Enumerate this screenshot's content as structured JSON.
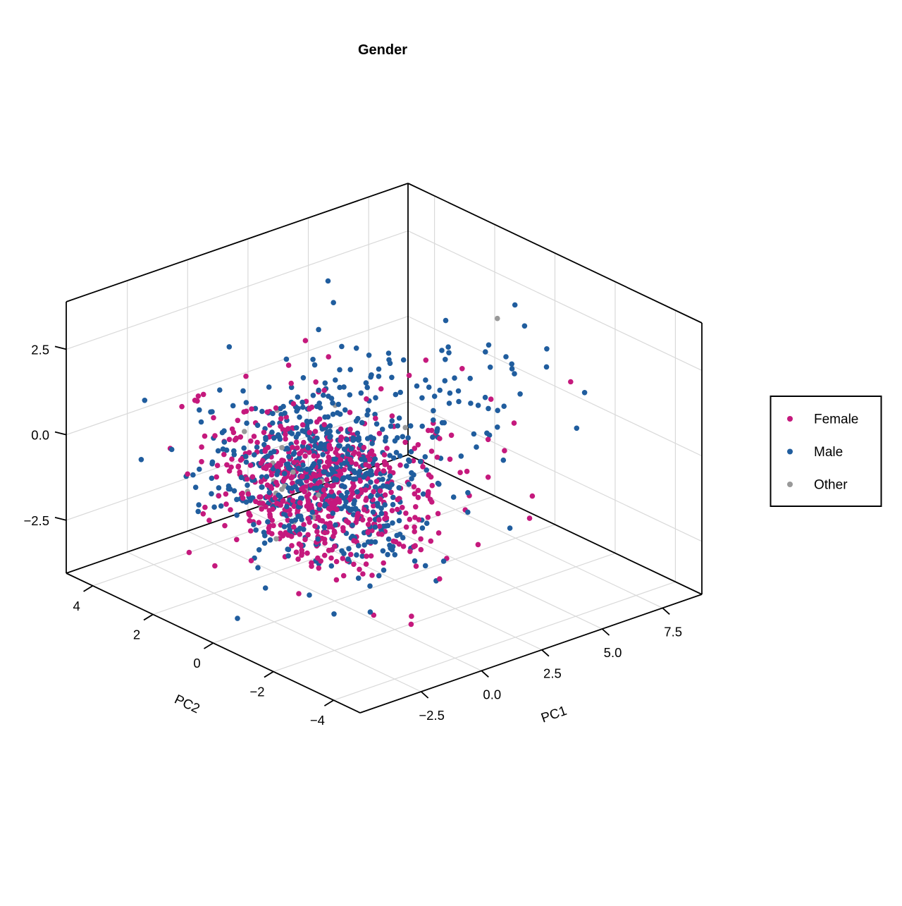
{
  "title": "Gender",
  "chart_data": {
    "type": "scatter",
    "projection": "3d",
    "title": "Gender",
    "grid": true,
    "axes": {
      "x": {
        "label": "PC1",
        "range": [
          -5.03,
          9.13
        ],
        "ticks": [
          {
            "v": -2.5,
            "label": "−2.5"
          },
          {
            "v": 0.0,
            "label": "0.0"
          },
          {
            "v": 2.5,
            "label": "2.5"
          },
          {
            "v": 5.0,
            "label": "5.0"
          },
          {
            "v": 7.5,
            "label": "7.5"
          }
        ]
      },
      "y": {
        "label": "PC2",
        "range": [
          -4.88,
          4.88
        ],
        "ticks": [
          {
            "v": 4,
            "label": "4"
          },
          {
            "v": 2,
            "label": "2"
          },
          {
            "v": 0,
            "label": "0"
          },
          {
            "v": -2,
            "label": "−2"
          },
          {
            "v": -4,
            "label": "−4"
          }
        ]
      },
      "z": {
        "label": "",
        "range": [
          -4.05,
          3.89
        ],
        "ticks": [
          {
            "v": 2.5,
            "label": "2.5"
          },
          {
            "v": 0.0,
            "label": "0.0"
          },
          {
            "v": -2.5,
            "label": "−2.5"
          }
        ]
      }
    },
    "legend": {
      "position": "right",
      "entries": [
        {
          "label": "Female",
          "color": "#C5197D"
        },
        {
          "label": "Male",
          "color": "#205D9E"
        },
        {
          "label": "Other",
          "color": "#999999"
        }
      ]
    },
    "series": [
      {
        "name": "Female",
        "color": "#C5197D",
        "clusters": [
          {
            "n": 600,
            "mean": [
              -0.7,
              0.0,
              -0.55
            ],
            "sd": [
              1.25,
              1.4,
              1.0
            ]
          },
          {
            "n": 45,
            "mean": [
              2.6,
              -0.4,
              -0.1
            ],
            "sd": [
              1.8,
              1.3,
              1.0
            ]
          }
        ]
      },
      {
        "name": "Male",
        "color": "#205D9E",
        "clusters": [
          {
            "n": 560,
            "mean": [
              -0.4,
              0.15,
              -0.4
            ],
            "sd": [
              1.35,
              1.35,
              1.1
            ]
          },
          {
            "n": 120,
            "mean": [
              3.8,
              0.3,
              0.6
            ],
            "sd": [
              2.0,
              1.3,
              1.15
            ]
          }
        ]
      },
      {
        "name": "Other",
        "color": "#999999",
        "clusters": [
          {
            "n": 22,
            "mean": [
              -1.4,
              0.4,
              -1.1
            ],
            "sd": [
              0.8,
              0.9,
              0.55
            ]
          },
          {
            "n": 5,
            "mean": [
              2.0,
              0.2,
              1.2
            ],
            "sd": [
              2.6,
              1.4,
              1.3
            ]
          }
        ]
      }
    ],
    "point_radius": 3.8,
    "seed": 20240613,
    "style": {
      "grid_color": "#D9D9D9",
      "edge_color": "#000000",
      "background": "#FFFFFF",
      "legend_border": "#000000"
    }
  }
}
